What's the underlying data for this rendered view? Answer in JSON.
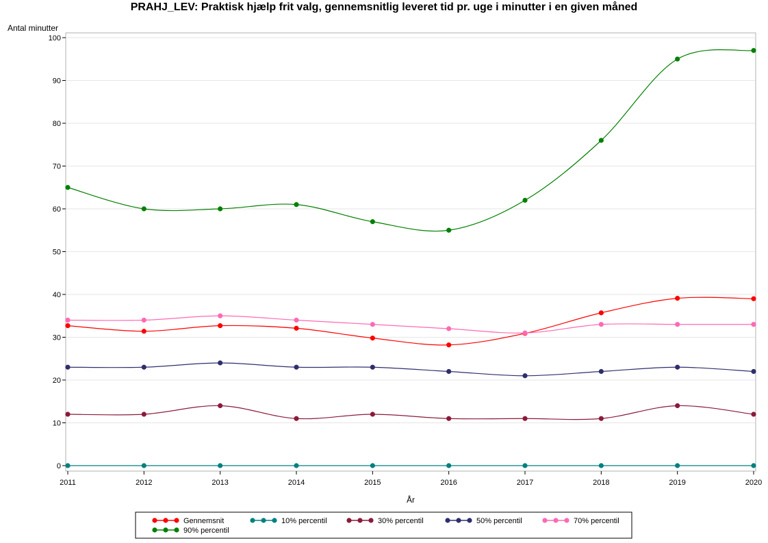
{
  "chart_data": {
    "type": "line",
    "title": "PRAHJ_LEV: Praktisk hjælp frit valg, gennemsnitlig leveret tid pr. uge i minutter i en given måned",
    "xlabel": "År",
    "ylabel": "Antal minutter",
    "x": [
      2011,
      2012,
      2013,
      2014,
      2015,
      2016,
      2017,
      2018,
      2019,
      2020
    ],
    "xlim": [
      2011,
      2020
    ],
    "ylim": [
      0,
      100
    ],
    "yticks": [
      0,
      10,
      20,
      30,
      40,
      50,
      60,
      70,
      80,
      90,
      100
    ],
    "grid": "horizontal",
    "legend_position": "bottom",
    "series": [
      {
        "name": "Gennemsnit",
        "color": "#ff0000",
        "values": [
          32.7,
          31.4,
          32.7,
          32.1,
          29.8,
          28.2,
          30.9,
          35.7,
          39.1,
          39.0
        ]
      },
      {
        "name": "10% percentil",
        "color": "#008080",
        "values": [
          0,
          0,
          0,
          0,
          0,
          0,
          0,
          0,
          0,
          0
        ]
      },
      {
        "name": "30% percentil",
        "color": "#8b1a3a",
        "values": [
          12,
          12,
          14,
          11,
          12,
          11,
          11,
          11,
          14,
          12
        ]
      },
      {
        "name": "50% percentil",
        "color": "#2e2e6e",
        "values": [
          23,
          23,
          24,
          23,
          23,
          22,
          21,
          22,
          23,
          22
        ]
      },
      {
        "name": "70% percentil",
        "color": "#ff69b4",
        "values": [
          34,
          34,
          35,
          34,
          33,
          32,
          31,
          33,
          33,
          33
        ]
      },
      {
        "name": "90% percentil",
        "color": "#008000",
        "values": [
          65,
          60,
          60,
          61,
          57,
          55,
          62,
          76,
          95,
          97
        ]
      }
    ]
  }
}
